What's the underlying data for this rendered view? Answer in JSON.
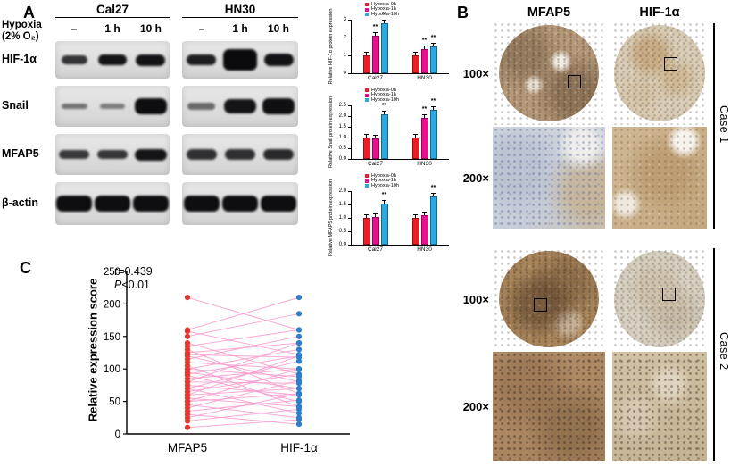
{
  "panelA": {
    "label": "A",
    "cell_lines": [
      "Cal27",
      "HN30"
    ],
    "hypoxia_line1": "Hypoxia",
    "hypoxia_line2": "(2% O₂)",
    "timepoints": [
      "–",
      "1 h",
      "10 h"
    ],
    "blots": [
      {
        "label": "HIF-1α",
        "cal27": [
          [
            0.8,
            0.8,
            0.75
          ],
          [
            0.95,
            0.9,
            0.95
          ],
          [
            0.95,
            0.9,
            1.0
          ]
        ],
        "hn30": [
          [
            0.9,
            0.9,
            0.95
          ],
          [
            1.0,
            1.05,
            1.8
          ],
          [
            0.95,
            0.9,
            1.1
          ]
        ]
      },
      {
        "label": "Snail",
        "cal27": [
          [
            0.5,
            0.8,
            0.45
          ],
          [
            0.45,
            0.8,
            0.45
          ],
          [
            0.98,
            1.0,
            1.35
          ]
        ],
        "hn30": [
          [
            0.55,
            0.85,
            0.6
          ],
          [
            0.95,
            1.0,
            1.25
          ],
          [
            0.97,
            1.0,
            1.35
          ]
        ]
      },
      {
        "label": "MFAP5",
        "cal27": [
          [
            0.78,
            0.95,
            0.8
          ],
          [
            0.8,
            0.95,
            0.8
          ],
          [
            0.95,
            1.0,
            1.0
          ]
        ],
        "hn30": [
          [
            0.82,
            0.95,
            0.9
          ],
          [
            0.82,
            0.95,
            0.9
          ],
          [
            0.85,
            0.95,
            0.95
          ]
        ]
      },
      {
        "label": "β-actin",
        "cal27": [
          [
            0.98,
            1.12,
            1.35
          ],
          [
            0.98,
            1.12,
            1.35
          ],
          [
            0.98,
            1.12,
            1.35
          ]
        ],
        "hn30": [
          [
            0.98,
            1.12,
            1.35
          ],
          [
            0.98,
            1.12,
            1.35
          ],
          [
            0.98,
            1.12,
            1.35
          ]
        ]
      }
    ]
  },
  "panelB": {
    "label": "B",
    "columns": [
      "MFAP5",
      "HIF-1α"
    ],
    "magnifications": [
      "100×",
      "200×",
      "100×",
      "200×"
    ],
    "cases": [
      "Case 1",
      "Case 2"
    ]
  },
  "panelC": {
    "label": "C",
    "r_label": "r=0.439",
    "p_prefix": "P",
    "p_suffix": "<0.01"
  },
  "chart_data": [
    {
      "type": "bar",
      "ylabel": "Relative HIF-1α protein expression",
      "categories": [
        "Cal27",
        "HN30"
      ],
      "series": [
        {
          "name": "Hypoxia-0h",
          "color": "#ee1c25",
          "values": [
            1.0,
            1.0
          ]
        },
        {
          "name": "Hypoxia-1h",
          "color": "#ec0e8e",
          "values": [
            2.1,
            1.35
          ]
        },
        {
          "name": "Hypoxia-10h",
          "color": "#29abe2",
          "values": [
            2.8,
            1.5
          ]
        }
      ],
      "ylim": [
        0,
        3
      ],
      "ystep": 1,
      "tick_decimals": 0,
      "grid": false,
      "legend_position": "top-left",
      "sig": [
        [
          null,
          "**",
          "**"
        ],
        [
          null,
          "**",
          "**"
        ]
      ]
    },
    {
      "type": "bar",
      "ylabel": "Relative Snail protein expression",
      "categories": [
        "Cal27",
        "HN30"
      ],
      "series": [
        {
          "name": "Hypoxia-0h",
          "color": "#ee1c25",
          "values": [
            1.0,
            1.0
          ]
        },
        {
          "name": "Hypoxia-1h",
          "color": "#ec0e8e",
          "values": [
            0.95,
            1.9
          ]
        },
        {
          "name": "Hypoxia-10h",
          "color": "#29abe2",
          "values": [
            2.1,
            2.3
          ]
        }
      ],
      "ylim": [
        0,
        2.5
      ],
      "ystep": 0.5,
      "tick_decimals": 1,
      "grid": false,
      "legend_position": "top-left",
      "sig": [
        [
          null,
          null,
          "**"
        ],
        [
          null,
          "**",
          "**"
        ]
      ]
    },
    {
      "type": "bar",
      "ylabel": "Relative MFAP5 protein expression",
      "categories": [
        "Cal27",
        "HN30"
      ],
      "series": [
        {
          "name": "Hypoxia-0h",
          "color": "#ee1c25",
          "values": [
            1.0,
            1.0
          ]
        },
        {
          "name": "Hypoxia-1h",
          "color": "#ec0e8e",
          "values": [
            1.05,
            1.1
          ]
        },
        {
          "name": "Hypoxia-10h",
          "color": "#29abe2",
          "values": [
            1.55,
            1.8
          ]
        }
      ],
      "ylim": [
        0,
        2
      ],
      "ystep": 0.5,
      "tick_decimals": 1,
      "grid": false,
      "legend_position": "top-left",
      "sig": [
        [
          null,
          null,
          "**"
        ],
        [
          null,
          null,
          "**"
        ]
      ]
    },
    {
      "type": "paired-scatter",
      "ylabel": "Relative expression score",
      "categories": [
        "MFAP5",
        "HIF-1α"
      ],
      "ylim": [
        0,
        250
      ],
      "ystep": 50,
      "yticks": [
        0,
        50,
        100,
        150,
        200,
        250
      ],
      "annotation": {
        "r": "r=0.439",
        "p": "P<0.01"
      },
      "colors": {
        "left_points": "#e8382d",
        "right_points": "#2e7ecc",
        "lines": "#f79ccd"
      },
      "pairs": [
        [
          210,
          160
        ],
        [
          160,
          210
        ],
        [
          158,
          122
        ],
        [
          150,
          185
        ],
        [
          140,
          92
        ],
        [
          135,
          160
        ],
        [
          130,
          62
        ],
        [
          125,
          140
        ],
        [
          122,
          118
        ],
        [
          120,
          80
        ],
        [
          115,
          150
        ],
        [
          110,
          100
        ],
        [
          105,
          42
        ],
        [
          100,
          130
        ],
        [
          100,
          88
        ],
        [
          95,
          70
        ],
        [
          92,
          120
        ],
        [
          90,
          50
        ],
        [
          85,
          100
        ],
        [
          80,
          140
        ],
        [
          80,
          78
        ],
        [
          75,
          60
        ],
        [
          70,
          112
        ],
        [
          70,
          32
        ],
        [
          65,
          92
        ],
        [
          60,
          120
        ],
        [
          60,
          70
        ],
        [
          55,
          42
        ],
        [
          50,
          100
        ],
        [
          50,
          62
        ],
        [
          45,
          25
        ],
        [
          40,
          82
        ],
        [
          35,
          52
        ],
        [
          30,
          15
        ],
        [
          25,
          62
        ],
        [
          20,
          38
        ],
        [
          10,
          22
        ]
      ]
    }
  ]
}
